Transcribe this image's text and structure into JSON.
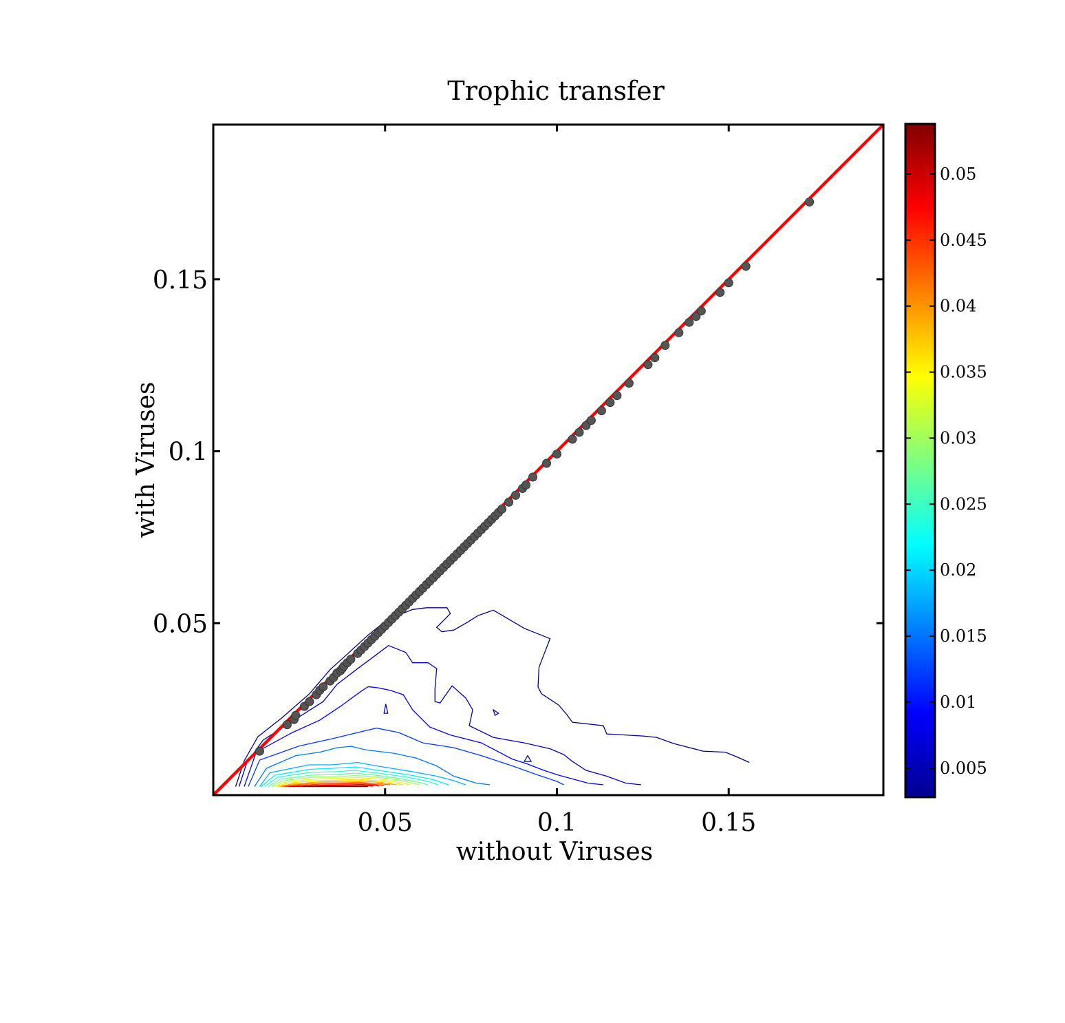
{
  "chart_data": {
    "type": "scatter",
    "title": "Trophic transfer",
    "xlabel": "without Viruses",
    "ylabel": "with Viruses",
    "xlim": [
      0.0,
      0.195
    ],
    "ylim": [
      0.0,
      0.195
    ],
    "xticks": [
      0.05,
      0.1,
      0.15
    ],
    "xtick_labels": [
      "0.05",
      "0.1",
      "0.15"
    ],
    "yticks": [
      0.05,
      0.1,
      0.15
    ],
    "ytick_labels": [
      "0.05",
      "0.1",
      "0.15"
    ],
    "grid": false,
    "identity_line": {
      "color": "#ff0000",
      "from": [
        0.0,
        0.0
      ],
      "to": [
        0.195,
        0.195
      ]
    },
    "marker_color": "#555555",
    "scatter": {
      "x": [
        0.0135,
        0.0215,
        0.0235,
        0.024,
        0.0265,
        0.028,
        0.03,
        0.031,
        0.032,
        0.034,
        0.035,
        0.036,
        0.037,
        0.0375,
        0.038,
        0.039,
        0.04,
        0.042,
        0.043,
        0.044,
        0.045,
        0.046,
        0.047,
        0.048,
        0.049,
        0.05,
        0.051,
        0.052,
        0.053,
        0.054,
        0.055,
        0.056,
        0.057,
        0.058,
        0.059,
        0.06,
        0.061,
        0.062,
        0.063,
        0.064,
        0.065,
        0.066,
        0.067,
        0.068,
        0.069,
        0.07,
        0.071,
        0.072,
        0.073,
        0.074,
        0.075,
        0.076,
        0.077,
        0.078,
        0.079,
        0.08,
        0.081,
        0.082,
        0.083,
        0.084,
        0.086,
        0.088,
        0.09,
        0.091,
        0.093,
        0.097,
        0.1,
        0.1045,
        0.1065,
        0.1085,
        0.11,
        0.113,
        0.1155,
        0.1175,
        0.121,
        0.1265,
        0.1285,
        0.1315,
        0.1355,
        0.1385,
        0.1405,
        0.142,
        0.1475,
        0.15,
        0.155,
        0.1735
      ],
      "y": [
        0.0128,
        0.0205,
        0.022,
        0.0232,
        0.0258,
        0.0272,
        0.0292,
        0.0305,
        0.0315,
        0.0332,
        0.0342,
        0.0355,
        0.0362,
        0.0368,
        0.0375,
        0.0385,
        0.0395,
        0.0412,
        0.0422,
        0.0432,
        0.0442,
        0.0452,
        0.0462,
        0.0472,
        0.0482,
        0.0492,
        0.0502,
        0.0512,
        0.0522,
        0.0532,
        0.0542,
        0.0552,
        0.0562,
        0.0572,
        0.0582,
        0.0592,
        0.0602,
        0.0612,
        0.0622,
        0.0632,
        0.0642,
        0.0652,
        0.0662,
        0.0672,
        0.0682,
        0.0692,
        0.0702,
        0.0712,
        0.0722,
        0.0732,
        0.0742,
        0.0752,
        0.0762,
        0.0772,
        0.0782,
        0.0792,
        0.0802,
        0.0812,
        0.0822,
        0.0832,
        0.0852,
        0.0872,
        0.0892,
        0.0902,
        0.0925,
        0.0965,
        0.0992,
        0.1035,
        0.1055,
        0.1075,
        0.109,
        0.1118,
        0.1142,
        0.1162,
        0.1198,
        0.1252,
        0.1272,
        0.1308,
        0.1345,
        0.1375,
        0.1392,
        0.1408,
        0.1462,
        0.149,
        0.1538,
        0.1725
      ]
    },
    "contours": [
      {
        "level": 0.003,
        "points": [
          [
            0.0065,
            0.0025
          ],
          [
            0.009,
            0.01
          ],
          [
            0.013,
            0.017
          ],
          [
            0.02,
            0.0225
          ],
          [
            0.028,
            0.0295
          ],
          [
            0.034,
            0.0365
          ],
          [
            0.039,
            0.041
          ],
          [
            0.045,
            0.0465
          ],
          [
            0.05,
            0.0505
          ],
          [
            0.053,
            0.052
          ],
          [
            0.058,
            0.054
          ],
          [
            0.062,
            0.0545
          ],
          [
            0.068,
            0.0545
          ],
          [
            0.069,
            0.0528
          ],
          [
            0.067,
            0.0508
          ],
          [
            0.065,
            0.0488
          ],
          [
            0.0665,
            0.0475
          ],
          [
            0.07,
            0.048
          ],
          [
            0.074,
            0.0503
          ],
          [
            0.077,
            0.0522
          ],
          [
            0.0815,
            0.0538
          ],
          [
            0.0905,
            0.0485
          ],
          [
            0.098,
            0.0455
          ],
          [
            0.0948,
            0.0372
          ],
          [
            0.0945,
            0.0315
          ],
          [
            0.0955,
            0.0295
          ],
          [
            0.1005,
            0.0262
          ],
          [
            0.1028,
            0.0235
          ],
          [
            0.1045,
            0.0212
          ],
          [
            0.1135,
            0.0202
          ],
          [
            0.1145,
            0.0178
          ],
          [
            0.125,
            0.0172
          ],
          [
            0.129,
            0.0168
          ],
          [
            0.134,
            0.015
          ],
          [
            0.1425,
            0.0128
          ],
          [
            0.149,
            0.0125
          ],
          [
            0.152,
            0.0113
          ],
          [
            0.156,
            0.0095
          ]
        ]
      },
      {
        "level": 0.006,
        "points": [
          [
            0.0075,
            0.0025
          ],
          [
            0.0098,
            0.0095
          ],
          [
            0.0145,
            0.016
          ],
          [
            0.023,
            0.0215
          ],
          [
            0.032,
            0.0272
          ],
          [
            0.036,
            0.0322
          ],
          [
            0.042,
            0.0368
          ],
          [
            0.047,
            0.0405
          ],
          [
            0.051,
            0.0435
          ],
          [
            0.056,
            0.0415
          ],
          [
            0.058,
            0.0385
          ],
          [
            0.0625,
            0.0385
          ],
          [
            0.065,
            0.0368
          ],
          [
            0.0645,
            0.0308
          ],
          [
            0.0645,
            0.0272
          ],
          [
            0.066,
            0.0268
          ],
          [
            0.0695,
            0.0318
          ],
          [
            0.0735,
            0.0282
          ],
          [
            0.0755,
            0.0248
          ],
          [
            0.0745,
            0.0202
          ],
          [
            0.0815,
            0.0168
          ],
          [
            0.0905,
            0.0152
          ],
          [
            0.098,
            0.0135
          ],
          [
            0.102,
            0.0118
          ],
          [
            0.1045,
            0.0098
          ],
          [
            0.1085,
            0.0072
          ],
          [
            0.1145,
            0.0055
          ],
          [
            0.12,
            0.0035
          ],
          [
            0.1245,
            0.003
          ]
        ]
      },
      {
        "level": 0.009,
        "points": [
          [
            0.009,
            0.0025
          ],
          [
            0.0125,
            0.0125
          ],
          [
            0.023,
            0.0182
          ],
          [
            0.031,
            0.0218
          ],
          [
            0.037,
            0.0258
          ],
          [
            0.043,
            0.0302
          ],
          [
            0.045,
            0.0315
          ],
          [
            0.0455,
            0.0315
          ],
          [
            0.048,
            0.0312
          ],
          [
            0.0515,
            0.0305
          ],
          [
            0.0553,
            0.0292
          ],
          [
            0.058,
            0.0248
          ],
          [
            0.063,
            0.0198
          ],
          [
            0.069,
            0.0175
          ],
          [
            0.078,
            0.0152
          ],
          [
            0.087,
            0.0105
          ],
          [
            0.091,
            0.0092
          ],
          [
            0.0962,
            0.0072
          ],
          [
            0.1005,
            0.0058
          ],
          [
            0.109,
            0.0035
          ],
          [
            0.1135,
            0.003
          ]
        ]
      },
      {
        "level": 0.012,
        "points": [
          [
            0.0102,
            0.0025
          ],
          [
            0.0135,
            0.0102
          ],
          [
            0.025,
            0.0143
          ],
          [
            0.035,
            0.0165
          ],
          [
            0.042,
            0.0182
          ],
          [
            0.0475,
            0.0195
          ],
          [
            0.054,
            0.0182
          ],
          [
            0.061,
            0.0152
          ],
          [
            0.07,
            0.0138
          ],
          [
            0.078,
            0.0115
          ],
          [
            0.087,
            0.0085
          ],
          [
            0.094,
            0.006
          ],
          [
            0.1,
            0.004
          ],
          [
            0.102,
            0.003
          ]
        ]
      },
      {
        "level": 0.015,
        "points": [
          [
            0.012,
            0.0025
          ],
          [
            0.0155,
            0.0078
          ],
          [
            0.024,
            0.0115
          ],
          [
            0.031,
            0.0125
          ],
          [
            0.036,
            0.0138
          ],
          [
            0.0402,
            0.0142
          ],
          [
            0.0442,
            0.0132
          ],
          [
            0.0525,
            0.0122
          ],
          [
            0.059,
            0.0108
          ],
          [
            0.065,
            0.0085
          ],
          [
            0.07,
            0.0055
          ],
          [
            0.0765,
            0.0035
          ],
          [
            0.0805,
            0.003
          ]
        ]
      },
      {
        "level": 0.018,
        "points": [
          [
            0.0135,
            0.0025
          ],
          [
            0.0165,
            0.0065
          ],
          [
            0.0278,
            0.0088
          ],
          [
            0.0345,
            0.0088
          ],
          [
            0.042,
            0.0095
          ],
          [
            0.0475,
            0.0085
          ],
          [
            0.058,
            0.0068
          ],
          [
            0.065,
            0.0055
          ],
          [
            0.07,
            0.0042
          ],
          [
            0.0735,
            0.003
          ]
        ]
      },
      {
        "level": 0.021,
        "points": [
          [
            0.014,
            0.0025
          ],
          [
            0.018,
            0.0058
          ],
          [
            0.028,
            0.0075
          ],
          [
            0.035,
            0.0078
          ],
          [
            0.0415,
            0.0082
          ],
          [
            0.048,
            0.0072
          ],
          [
            0.0575,
            0.0058
          ],
          [
            0.064,
            0.0045
          ],
          [
            0.0685,
            0.003
          ]
        ]
      },
      {
        "level": 0.024,
        "points": [
          [
            0.015,
            0.0025
          ],
          [
            0.0188,
            0.0052
          ],
          [
            0.028,
            0.0066
          ],
          [
            0.0355,
            0.0068
          ],
          [
            0.041,
            0.0072
          ],
          [
            0.048,
            0.0064
          ],
          [
            0.0565,
            0.0052
          ],
          [
            0.0625,
            0.004
          ],
          [
            0.0655,
            0.003
          ]
        ]
      },
      {
        "level": 0.027,
        "points": [
          [
            0.016,
            0.0025
          ],
          [
            0.0195,
            0.0046
          ],
          [
            0.0285,
            0.0058
          ],
          [
            0.036,
            0.006
          ],
          [
            0.0415,
            0.0064
          ],
          [
            0.048,
            0.0057
          ],
          [
            0.055,
            0.0047
          ],
          [
            0.0605,
            0.0036
          ],
          [
            0.0625,
            0.003
          ]
        ]
      },
      {
        "level": 0.03,
        "points": [
          [
            0.017,
            0.0025
          ],
          [
            0.0202,
            0.0042
          ],
          [
            0.029,
            0.0052
          ],
          [
            0.0365,
            0.0054
          ],
          [
            0.042,
            0.0057
          ],
          [
            0.0485,
            0.0051
          ],
          [
            0.0545,
            0.0043
          ],
          [
            0.0588,
            0.0033
          ],
          [
            0.06,
            0.003
          ]
        ]
      },
      {
        "level": 0.033,
        "points": [
          [
            0.0178,
            0.0025
          ],
          [
            0.021,
            0.0038
          ],
          [
            0.0295,
            0.0047
          ],
          [
            0.037,
            0.0049
          ],
          [
            0.0422,
            0.0051
          ],
          [
            0.049,
            0.0046
          ],
          [
            0.054,
            0.0038
          ],
          [
            0.0572,
            0.003
          ]
        ]
      },
      {
        "level": 0.036,
        "points": [
          [
            0.0185,
            0.0025
          ],
          [
            0.0218,
            0.0035
          ],
          [
            0.03,
            0.0042
          ],
          [
            0.0375,
            0.0044
          ],
          [
            0.0424,
            0.0046
          ],
          [
            0.049,
            0.0041
          ],
          [
            0.053,
            0.0034
          ],
          [
            0.0552,
            0.003
          ]
        ]
      },
      {
        "level": 0.039,
        "points": [
          [
            0.0192,
            0.0025
          ],
          [
            0.0226,
            0.0032
          ],
          [
            0.0305,
            0.0038
          ],
          [
            0.038,
            0.004
          ],
          [
            0.0426,
            0.0041
          ],
          [
            0.0488,
            0.0037
          ],
          [
            0.0525,
            0.0031
          ],
          [
            0.0535,
            0.003
          ]
        ]
      },
      {
        "level": 0.042,
        "points": [
          [
            0.02,
            0.0025
          ],
          [
            0.0235,
            0.003
          ],
          [
            0.031,
            0.0035
          ],
          [
            0.0385,
            0.0036
          ],
          [
            0.0428,
            0.0037
          ],
          [
            0.0485,
            0.0033
          ],
          [
            0.0515,
            0.003
          ]
        ]
      },
      {
        "level": 0.045,
        "points": [
          [
            0.0208,
            0.0025
          ],
          [
            0.0245,
            0.0028
          ],
          [
            0.0315,
            0.0032
          ],
          [
            0.039,
            0.0033
          ],
          [
            0.043,
            0.0034
          ],
          [
            0.048,
            0.003
          ],
          [
            0.0498,
            0.0028
          ]
        ]
      },
      {
        "level": 0.048,
        "points": [
          [
            0.0218,
            0.0025
          ],
          [
            0.0255,
            0.0026
          ],
          [
            0.032,
            0.0029
          ],
          [
            0.0395,
            0.003
          ],
          [
            0.0432,
            0.0031
          ],
          [
            0.0475,
            0.0028
          ],
          [
            0.0482,
            0.0026
          ]
        ]
      },
      {
        "level": 0.051,
        "points": [
          [
            0.023,
            0.0025
          ],
          [
            0.033,
            0.0027
          ],
          [
            0.04,
            0.0027
          ],
          [
            0.0434,
            0.0028
          ],
          [
            0.0465,
            0.0026
          ]
        ]
      },
      {
        "level": 0.054,
        "points": [
          [
            0.026,
            0.0025
          ],
          [
            0.034,
            0.0025
          ],
          [
            0.0405,
            0.0025
          ],
          [
            0.0436,
            0.0025
          ],
          [
            0.045,
            0.0025
          ]
        ]
      },
      {
        "level": 0.006,
        "closed": true,
        "points": [
          [
            0.0497,
            0.0238
          ],
          [
            0.0508,
            0.0238
          ],
          [
            0.0502,
            0.0265
          ]
        ]
      },
      {
        "level": 0.006,
        "closed": true,
        "points": [
          [
            0.0815,
            0.0248
          ],
          [
            0.083,
            0.0238
          ],
          [
            0.082,
            0.0232
          ]
        ]
      },
      {
        "level": 0.006,
        "closed": true,
        "points": [
          [
            0.0905,
            0.0098
          ],
          [
            0.0925,
            0.0098
          ],
          [
            0.0915,
            0.0115
          ]
        ]
      }
    ],
    "colorbar": {
      "range": [
        0.0028,
        0.0538
      ],
      "ticks": [
        0.005,
        0.01,
        0.015,
        0.02,
        0.025,
        0.03,
        0.035,
        0.04,
        0.045,
        0.05
      ],
      "tick_labels": [
        "0.005",
        "0.01",
        "0.015",
        "0.02",
        "0.025",
        "0.03",
        "0.035",
        "0.04",
        "0.045",
        "0.05"
      ],
      "colormap": "jet"
    }
  }
}
